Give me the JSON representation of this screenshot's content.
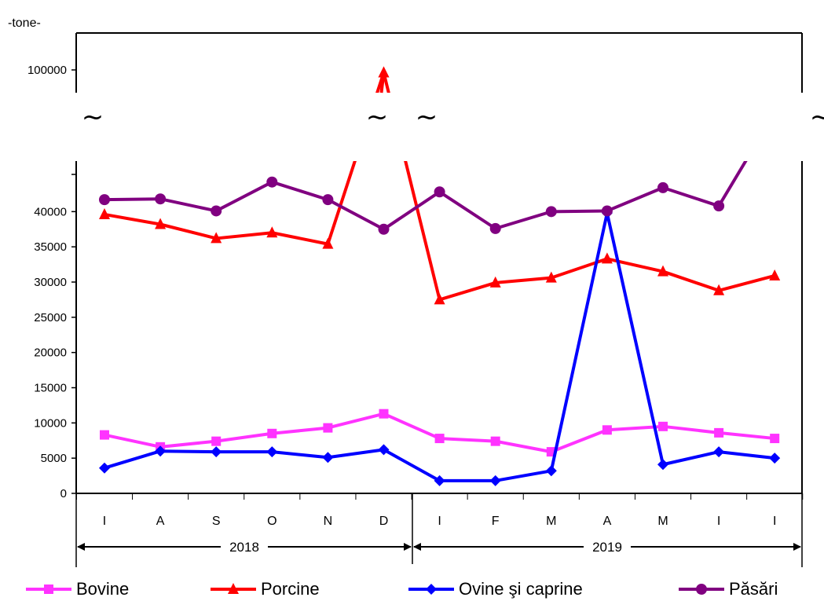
{
  "unit_label": "-tone-",
  "break_symbol": "~",
  "chart_data": {
    "type": "line",
    "categories": [
      "I",
      "A",
      "S",
      "O",
      "N",
      "D",
      "I",
      "F",
      "M",
      "A",
      "M",
      "I",
      "I"
    ],
    "year_groups": [
      {
        "label": "2018",
        "from": 0,
        "to": 5
      },
      {
        "label": "2019",
        "from": 6,
        "to": 12
      }
    ],
    "ylim": [
      0,
      100000
    ],
    "y_axis_break": [
      45000,
      100000
    ],
    "y_ticks": [
      {
        "value": 0,
        "label": "0"
      },
      {
        "value": 5000,
        "label": "5000"
      },
      {
        "value": 10000,
        "label": "10000"
      },
      {
        "value": 15000,
        "label": "15000"
      },
      {
        "value": 20000,
        "label": "20000"
      },
      {
        "value": 25000,
        "label": "25000"
      },
      {
        "value": 30000,
        "label": "30000"
      },
      {
        "value": 35000,
        "label": "35000"
      },
      {
        "value": 40000,
        "label": "40000"
      },
      {
        "value": 100000,
        "label": "100000"
      }
    ],
    "series": [
      {
        "name": "Bovine",
        "color": "#ff33ff",
        "marker": "square",
        "values": [
          8300,
          6600,
          7400,
          8500,
          9300,
          11300,
          7800,
          7400,
          5900,
          9000,
          9500,
          8600,
          7800
        ]
      },
      {
        "name": "Porcine",
        "color": "#ff0000",
        "marker": "triangle",
        "values": [
          39600,
          38200,
          36200,
          37000,
          35400,
          96500,
          27500,
          29900,
          30600,
          33300,
          31500,
          28800,
          30900
        ]
      },
      {
        "name": "Ovine şi caprine",
        "color": "#0000ff",
        "marker": "diamond",
        "values": [
          3600,
          6000,
          5900,
          5900,
          5100,
          6200,
          1800,
          1800,
          3200,
          39800,
          4100,
          5900,
          5000
        ]
      },
      {
        "name": "Păsări",
        "color": "#800080",
        "marker": "circle",
        "values": [
          41700,
          41800,
          40100,
          44200,
          41700,
          37500,
          42800,
          37600,
          40000,
          40100,
          43400,
          40800,
          45600
        ]
      }
    ]
  }
}
